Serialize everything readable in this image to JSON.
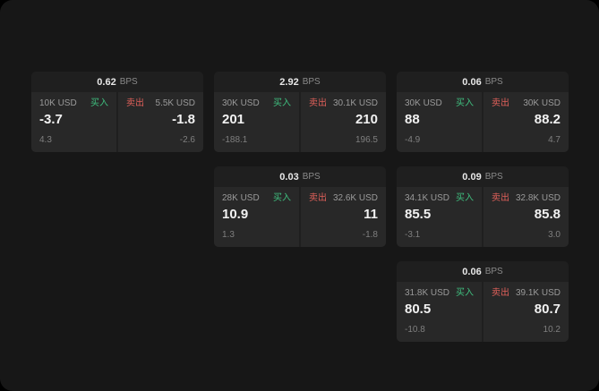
{
  "window": {
    "background": "#171717"
  },
  "colors": {
    "buy_green": "#3fbf7f",
    "sell_red": "#e0605a",
    "card_bg": "#1f1f1f",
    "panel_bg": "#282828"
  },
  "labels": {
    "buy": "买入",
    "sell": "卖出",
    "bps_unit": "BPS"
  },
  "cards": [
    {
      "bps_value": "0.62",
      "bps_unit": "BPS",
      "buy": {
        "notional": "10K USD",
        "label": "买入",
        "price": "-3.7",
        "change": "4.3"
      },
      "sell": {
        "label": "卖出",
        "notional": "5.5K USD",
        "price": "-1.8",
        "change": "-2.6"
      }
    },
    {
      "bps_value": "2.92",
      "bps_unit": "BPS",
      "buy": {
        "notional": "30K USD",
        "label": "买入",
        "price": "201",
        "change": "-188.1"
      },
      "sell": {
        "label": "卖出",
        "notional": "30.1K USD",
        "price": "210",
        "change": "196.5"
      }
    },
    {
      "bps_value": "0.06",
      "bps_unit": "BPS",
      "buy": {
        "notional": "30K USD",
        "label": "买入",
        "price": "88",
        "change": "-4.9"
      },
      "sell": {
        "label": "卖出",
        "notional": "30K USD",
        "price": "88.2",
        "change": "4.7"
      }
    },
    {
      "bps_value": "0.03",
      "bps_unit": "BPS",
      "buy": {
        "notional": "28K USD",
        "label": "买入",
        "price": "10.9",
        "change": "1.3"
      },
      "sell": {
        "label": "卖出",
        "notional": "32.6K USD",
        "price": "11",
        "change": "-1.8"
      }
    },
    {
      "bps_value": "0.09",
      "bps_unit": "BPS",
      "buy": {
        "notional": "34.1K USD",
        "label": "买入",
        "price": "85.5",
        "change": "-3.1"
      },
      "sell": {
        "label": "卖出",
        "notional": "32.8K USD",
        "price": "85.8",
        "change": "3.0"
      }
    },
    {
      "bps_value": "0.06",
      "bps_unit": "BPS",
      "buy": {
        "notional": "31.8K USD",
        "label": "买入",
        "price": "80.5",
        "change": "-10.8"
      },
      "sell": {
        "label": "卖出",
        "notional": "39.1K USD",
        "price": "80.7",
        "change": "10.2"
      }
    }
  ]
}
